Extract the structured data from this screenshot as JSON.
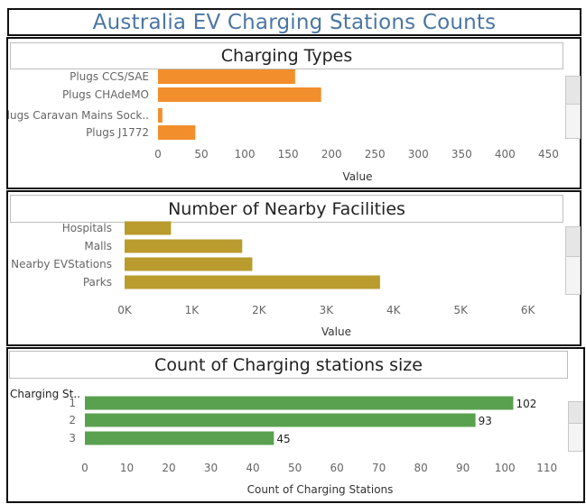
{
  "page": {
    "title": "Australia EV Charging Stations Counts"
  },
  "charts": [
    {
      "title": "Charging Types",
      "type": "bar",
      "orientation": "horizontal",
      "color": "#f28e2b",
      "categories": [
        "Plugs CCS/SAE",
        "Plugs CHAdeMO",
        "Plugs Caravan Mains Sock..",
        "Plugs J1772"
      ],
      "values": [
        158,
        188,
        5,
        43
      ],
      "xlabel": "Value",
      "xlim": [
        0,
        460
      ],
      "ticks": [
        0,
        50,
        100,
        150,
        200,
        250,
        300,
        350,
        400,
        450
      ],
      "tick_labels": [
        "0",
        "50",
        "100",
        "150",
        "200",
        "250",
        "300",
        "350",
        "400",
        "450"
      ]
    },
    {
      "title": "Number of Nearby Facilities",
      "type": "bar",
      "orientation": "horizontal",
      "color": "#b99b2e",
      "categories": [
        "Hospitals",
        "Malls",
        "Nearby EVStations",
        "Parks"
      ],
      "values": [
        690,
        1750,
        1900,
        3800
      ],
      "xlabel": "Value",
      "xlim": [
        0,
        6300
      ],
      "ticks": [
        0,
        1000,
        2000,
        3000,
        4000,
        5000,
        6000
      ],
      "tick_labels": [
        "0K",
        "1K",
        "2K",
        "3K",
        "4K",
        "5K",
        "6K"
      ]
    },
    {
      "title": "Count of Charging stations size",
      "type": "bar",
      "orientation": "horizontal",
      "color": "#59a14f",
      "header": "Charging St..",
      "categories": [
        "1",
        "2",
        "3"
      ],
      "values": [
        102,
        93,
        45
      ],
      "value_labels": [
        "102",
        "93",
        "45"
      ],
      "xlabel": "Count of Charging Stations",
      "xlim": [
        0,
        112
      ],
      "ticks": [
        0,
        10,
        20,
        30,
        40,
        50,
        60,
        70,
        80,
        90,
        100,
        110
      ],
      "tick_labels": [
        "0",
        "10",
        "20",
        "30",
        "40",
        "50",
        "60",
        "70",
        "80",
        "90",
        "100",
        "110"
      ]
    }
  ]
}
